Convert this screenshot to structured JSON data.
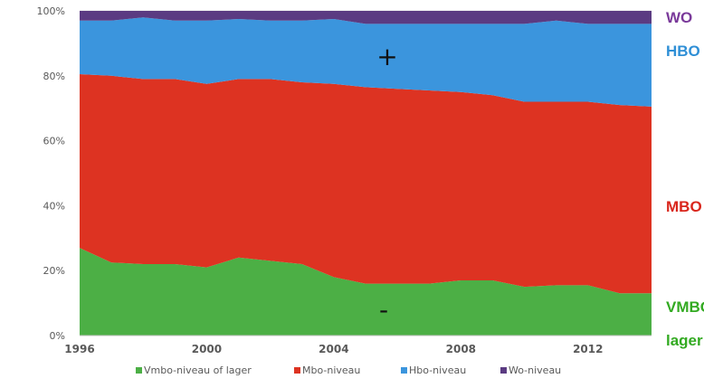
{
  "chart_data": {
    "type": "area",
    "stacked": true,
    "normalized": true,
    "x": [
      1996,
      1997,
      1998,
      1999,
      2000,
      2001,
      2002,
      2003,
      2004,
      2005,
      2006,
      2007,
      2008,
      2009,
      2010,
      2011,
      2012,
      2013,
      2014
    ],
    "xticks": [
      "1996",
      "2000",
      "2004",
      "2008",
      "2012"
    ],
    "yticks": [
      "0%",
      "20%",
      "40%",
      "60%",
      "80%",
      "100%"
    ],
    "ylim": [
      0,
      100
    ],
    "series": [
      {
        "name": "Vmbo-niveau of lager",
        "color": "#4caf45",
        "values": [
          27,
          22.5,
          22,
          22,
          21,
          24,
          23,
          22,
          18,
          16,
          16,
          16,
          17,
          17,
          15,
          15.5,
          15.5,
          13,
          13
        ]
      },
      {
        "name": "Mbo-niveau",
        "color": "#dd3322",
        "values": [
          53.5,
          57.5,
          57,
          57,
          56.5,
          55,
          56,
          56,
          59.5,
          60.5,
          60,
          59.5,
          58,
          57,
          57,
          56.5,
          56.5,
          58,
          57.5
        ]
      },
      {
        "name": "Hbo-niveau",
        "color": "#3b95dd",
        "values": [
          16.5,
          17,
          19,
          18,
          19.5,
          18.5,
          18,
          19,
          20,
          19.5,
          20,
          20.5,
          21,
          22,
          24,
          25,
          24,
          25,
          25.5
        ]
      },
      {
        "name": "Wo-niveau",
        "color": "#5b3b82",
        "values": [
          3,
          3,
          2,
          3,
          3,
          2.5,
          3,
          3,
          2.5,
          4,
          4,
          4,
          4,
          4,
          4,
          3,
          4,
          4,
          4
        ]
      }
    ],
    "annotations": {
      "plus": "+",
      "minus": "-"
    },
    "side_labels": [
      {
        "text": "WO",
        "color": "#7a3a9a"
      },
      {
        "text": "HBO",
        "color": "#2f8fd6"
      },
      {
        "text": "MBO",
        "color": "#d9261c"
      },
      {
        "text": "VMBO of",
        "color": "#33aa22"
      },
      {
        "text": "lager",
        "color": "#33aa22"
      }
    ],
    "legend_position": "bottom"
  }
}
